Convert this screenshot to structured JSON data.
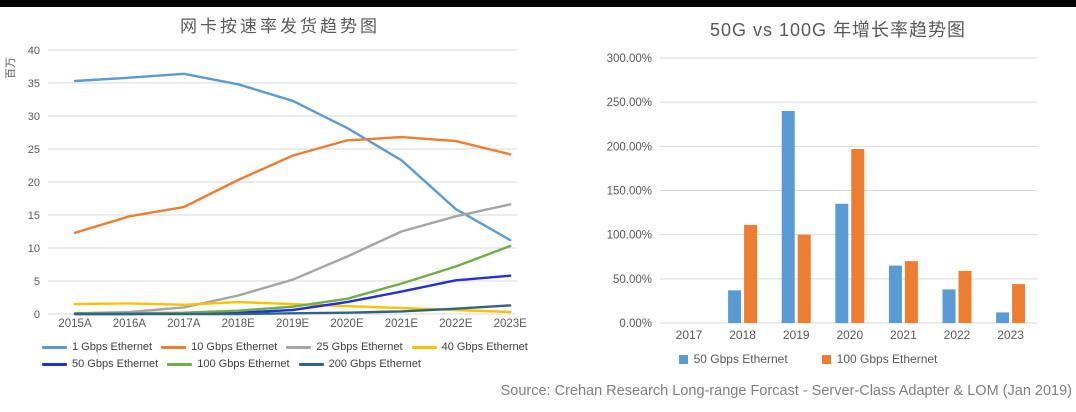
{
  "source": "Source: Crehan Research Long-range Forcast - Server-Class Adapter & LOM (Jan 2019)",
  "chart_data": [
    {
      "type": "line",
      "title": "网卡按速率发货趋势图",
      "ylabel": "百万",
      "xlabel": "",
      "ylim": [
        0,
        40
      ],
      "ytick_step": 5,
      "grid": true,
      "legend_position": "bottom",
      "categories": [
        "2015A",
        "2016A",
        "2017A",
        "2018E",
        "2019E",
        "2020E",
        "2021E",
        "2022E",
        "2023E"
      ],
      "series": [
        {
          "name": "1 Gbps Ethernet",
          "color": "#5B9BD5",
          "values": [
            35.3,
            35.8,
            36.4,
            34.8,
            32.3,
            28.2,
            23.3,
            15.9,
            11.2
          ]
        },
        {
          "name": "10 Gbps Ethernet",
          "color": "#ED7D31",
          "values": [
            12.3,
            14.8,
            16.2,
            20.3,
            24.0,
            26.3,
            26.8,
            26.2,
            24.2
          ]
        },
        {
          "name": "25 Gbps Ethernet",
          "color": "#A5A5A5",
          "values": [
            0.1,
            0.3,
            1.0,
            2.8,
            5.2,
            8.7,
            12.5,
            14.8,
            16.6
          ]
        },
        {
          "name": "40 Gbps Ethernet",
          "color": "#FFC000",
          "values": [
            1.5,
            1.6,
            1.4,
            1.8,
            1.5,
            1.2,
            0.9,
            0.6,
            0.3
          ]
        },
        {
          "name": "50 Gbps Ethernet",
          "color": "#2130D9",
          "values": [
            0,
            0,
            0.1,
            0.2,
            0.6,
            1.8,
            3.4,
            5.1,
            5.8
          ]
        },
        {
          "name": "100 Gbps Ethernet",
          "color": "#70AD47",
          "values": [
            0.1,
            0.1,
            0.2,
            0.5,
            1.1,
            2.3,
            4.6,
            7.2,
            10.3
          ]
        },
        {
          "name": "200 Gbps Ethernet",
          "color": "#2E6584",
          "values": [
            0,
            0,
            0,
            0,
            0.1,
            0.2,
            0.4,
            0.8,
            1.3
          ]
        }
      ]
    },
    {
      "type": "bar",
      "title": "50G vs 100G 年增长率趋势图",
      "xlabel": "",
      "ylabel": "",
      "ylim": [
        0,
        300
      ],
      "ytick_step": 50,
      "ytick_suffix": "%",
      "grid": true,
      "legend_position": "bottom",
      "categories": [
        "2017",
        "2018",
        "2019",
        "2020",
        "2021",
        "2022",
        "2023"
      ],
      "series": [
        {
          "name": "50 Gbps Ethernet",
          "color": "#5B9BD5",
          "values": [
            null,
            37,
            240,
            135,
            65,
            38,
            12
          ]
        },
        {
          "name": "100 Gbps Ethernet",
          "color": "#ED7D31",
          "values": [
            null,
            111,
            100,
            197,
            70,
            59,
            44
          ]
        }
      ]
    }
  ]
}
